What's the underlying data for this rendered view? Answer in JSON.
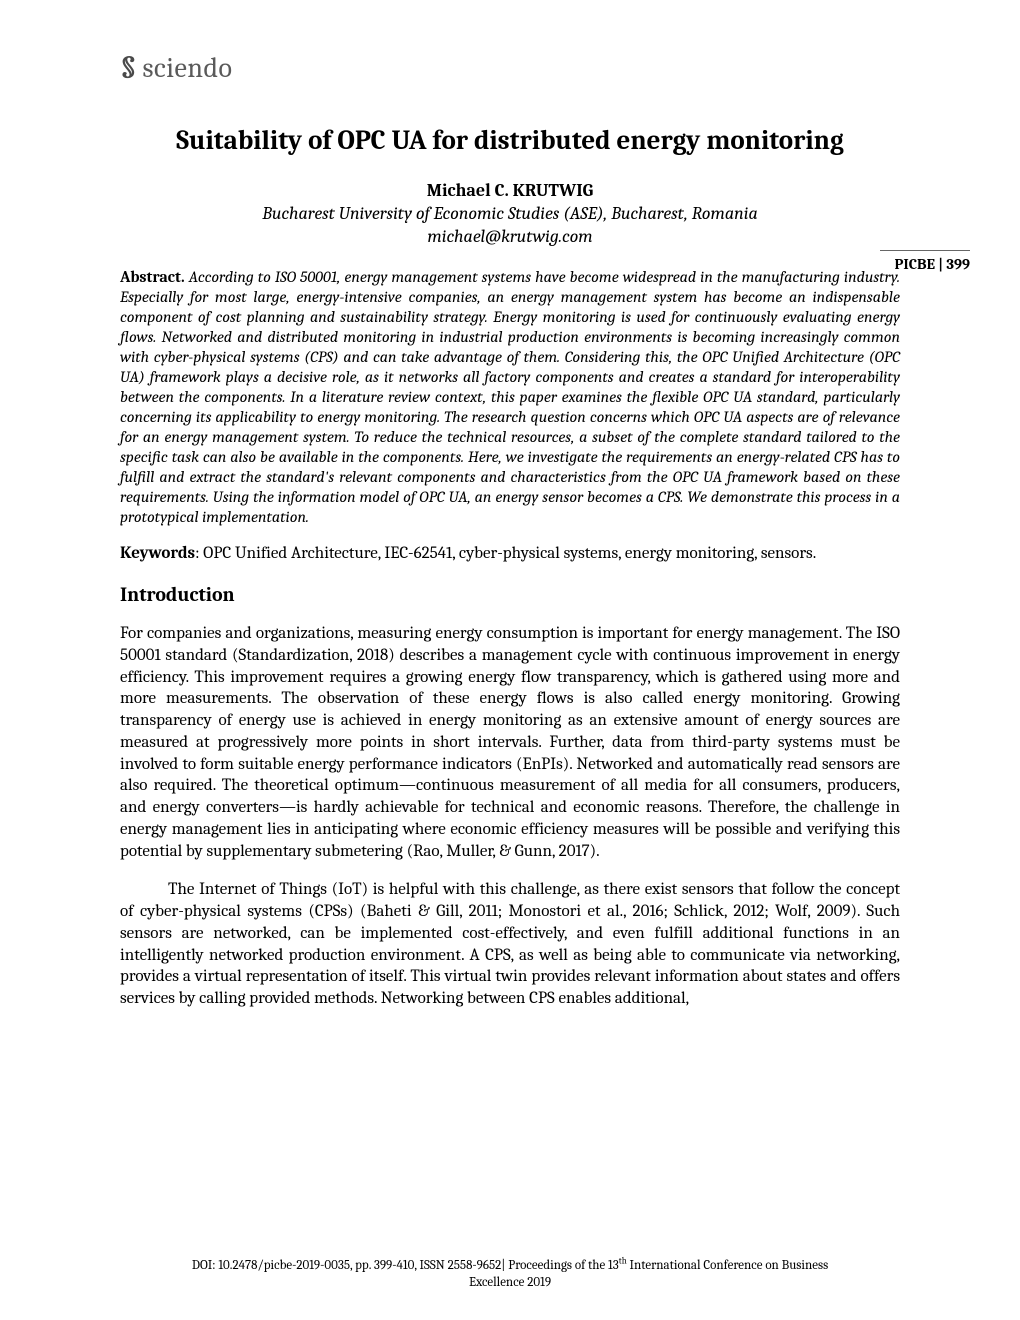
{
  "logo": {
    "brand_text": "sciendo",
    "mark_glyph": "§"
  },
  "header": {
    "title": "Suitability of OPC UA for distributed energy monitoring",
    "author": "Michael C. KRUTWIG",
    "affiliation": "Bucharest University of Economic Studies (ASE), Bucharest, Romania",
    "email": "michael@krutwig.com"
  },
  "page_marker": "PICBE | 399",
  "abstract": {
    "label": "Abstract.",
    "body": "According to ISO 50001, energy management systems have become widespread in the manufacturing industry. Especially for most large, energy-intensive companies, an energy management system has become an indispensable component of cost planning and sustainability strategy. Energy monitoring is used for continuously evaluating energy flows. Networked and distributed monitoring in industrial production environments is becoming increasingly common with cyber-physical systems (CPS) and can take advantage of them. Considering this, the OPC Unified Architecture (OPC UA) framework plays a decisive role, as it networks all factory components and creates a standard for interoperability between the components. In a literature review context, this paper examines the flexible OPC UA standard, particularly concerning its applicability to energy monitoring. The research question concerns which OPC UA aspects are of relevance for an energy management system. To reduce the technical resources, a subset of the complete standard tailored to the specific task can also be available in the components. Here, we investigate the requirements an energy-related CPS has to fulfill and extract the standard's relevant components and characteristics from the OPC UA framework based on these requirements. Using the information model of OPC UA, an energy sensor becomes a CPS. We demonstrate this process in a prototypical implementation."
  },
  "keywords": {
    "label": "Keywords",
    "body": ": OPC Unified Architecture, IEC-62541, cyber-physical systems, energy monitoring, sensors."
  },
  "sections": {
    "intro_heading": "Introduction",
    "intro_p1": "For companies and organizations, measuring energy consumption is important for energy management. The ISO 50001 standard (Standardization, 2018) describes a management cycle with continuous improvement in energy efficiency. This improvement requires a growing energy flow transparency, which is gathered using more and more measurements. The observation of these energy flows is also called energy monitoring. Growing transparency of energy use is achieved in energy monitoring as an extensive amount of energy sources are measured at progressively more points in short intervals. Further, data from third-party systems must be involved to form suitable energy performance indicators (EnPIs). Networked and automatically read sensors are also required. The theoretical optimum—continuous measurement of all media for all consumers, producers, and energy converters—is hardly achievable for technical and economic reasons. Therefore, the challenge in energy management lies in anticipating where economic efficiency measures will be possible and verifying this potential by supplementary submetering (Rao, Muller, & Gunn, 2017).",
    "intro_p2": "The Internet of Things (IoT) is helpful with this challenge, as there exist sensors that follow the concept of cyber-physical systems (CPSs) (Baheti & Gill, 2011; Monostori et al., 2016; Schlick, 2012; Wolf, 2009). Such sensors are networked, can be implemented cost-effectively, and even fulfill additional functions in an intelligently networked production environment. A CPS, as well as being able to communicate via networking, provides a virtual representation of itself. This virtual twin provides relevant information about states and offers services by calling provided methods. Networking between CPS enables additional,"
  },
  "footer": {
    "line1_prefix": "DOI: 10.2478/picbe-2019-0035, pp. 399-410, ISSN 2558-9652| Proceedings of the 13",
    "line1_sup": "th",
    "line1_suffix": " International Conference on Business",
    "line2": "Excellence 2019"
  },
  "colors": {
    "background": "#ffffff",
    "text": "#000000",
    "logo": "#5a5a5a"
  }
}
